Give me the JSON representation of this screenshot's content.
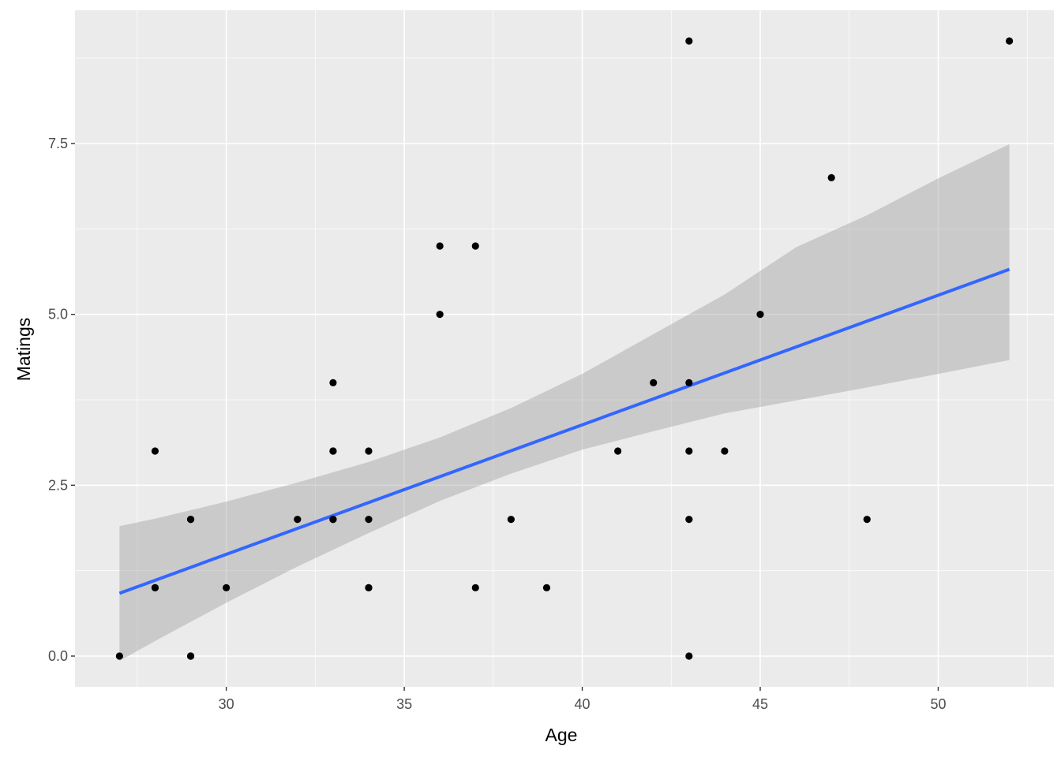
{
  "chart_data": {
    "type": "scatter",
    "title": "",
    "xlabel": "Age",
    "ylabel": "Matings",
    "xlim": [
      25.75,
      53.25
    ],
    "ylim": [
      -0.45,
      9.45
    ],
    "x_ticks": [
      30,
      35,
      40,
      45,
      50
    ],
    "x_tick_labels": [
      "30",
      "35",
      "40",
      "45",
      "50"
    ],
    "y_ticks": [
      0,
      2.5,
      5,
      7.5
    ],
    "y_tick_labels": [
      "0.0",
      "2.5",
      "5.0",
      "7.5"
    ],
    "grid": true,
    "points": [
      {
        "x": 27,
        "y": 0
      },
      {
        "x": 28,
        "y": 1
      },
      {
        "x": 28,
        "y": 1
      },
      {
        "x": 28,
        "y": 3
      },
      {
        "x": 29,
        "y": 0
      },
      {
        "x": 29,
        "y": 0
      },
      {
        "x": 29,
        "y": 2
      },
      {
        "x": 29,
        "y": 2
      },
      {
        "x": 30,
        "y": 1
      },
      {
        "x": 32,
        "y": 2
      },
      {
        "x": 33,
        "y": 4
      },
      {
        "x": 33,
        "y": 3
      },
      {
        "x": 33,
        "y": 3
      },
      {
        "x": 33,
        "y": 2
      },
      {
        "x": 33,
        "y": 2
      },
      {
        "x": 34,
        "y": 1
      },
      {
        "x": 34,
        "y": 1
      },
      {
        "x": 34,
        "y": 2
      },
      {
        "x": 34,
        "y": 3
      },
      {
        "x": 36,
        "y": 5
      },
      {
        "x": 36,
        "y": 6
      },
      {
        "x": 37,
        "y": 1
      },
      {
        "x": 37,
        "y": 6
      },
      {
        "x": 38,
        "y": 2
      },
      {
        "x": 39,
        "y": 1
      },
      {
        "x": 41,
        "y": 3
      },
      {
        "x": 42,
        "y": 4
      },
      {
        "x": 43,
        "y": 0
      },
      {
        "x": 43,
        "y": 2
      },
      {
        "x": 43,
        "y": 3
      },
      {
        "x": 43,
        "y": 4
      },
      {
        "x": 43,
        "y": 9
      },
      {
        "x": 44,
        "y": 3
      },
      {
        "x": 45,
        "y": 5
      },
      {
        "x": 47,
        "y": 7
      },
      {
        "x": 48,
        "y": 2
      },
      {
        "x": 52,
        "y": 9
      }
    ],
    "fit_line": {
      "method": "lm",
      "x_range": [
        27,
        52
      ],
      "intercept": -4.2,
      "slope": 0.1896,
      "color": "#3366ff"
    },
    "confidence_band": {
      "color": "#999999",
      "x": [
        27,
        28,
        30,
        32,
        34,
        36,
        38,
        40,
        42,
        44,
        46,
        48,
        50,
        52
      ],
      "lower": [
        -0.07,
        0.22,
        0.78,
        1.31,
        1.8,
        2.27,
        2.67,
        3.02,
        3.29,
        3.55,
        3.74,
        3.93,
        4.13,
        4.33
      ],
      "upper": [
        1.9,
        2.01,
        2.26,
        2.54,
        2.84,
        3.2,
        3.63,
        4.13,
        4.71,
        5.29,
        5.98,
        6.45,
        6.99,
        7.49
      ]
    },
    "colors": {
      "panel": "#ebebeb",
      "grid_major": "#ffffff",
      "point": "#000000"
    }
  }
}
